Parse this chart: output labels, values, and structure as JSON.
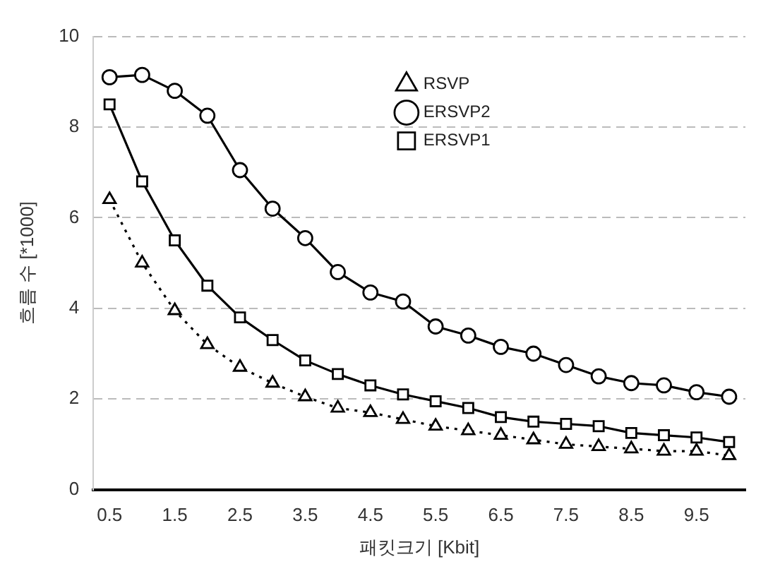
{
  "chart_data": {
    "type": "line",
    "xlabel": "패킷크기 [Kbit]",
    "ylabel": "흐름 수 [*1000]",
    "categories": [
      "0.5",
      null,
      "1.5",
      null,
      "2.5",
      null,
      "3.5",
      null,
      "4.5",
      null,
      "5.5",
      null,
      "6.5",
      null,
      "7.5",
      null,
      "8.5",
      null,
      "9.5",
      null
    ],
    "ylim": [
      0,
      10
    ],
    "yticks": [
      0,
      2,
      4,
      6,
      8,
      10
    ],
    "grid": "y",
    "legend": "top right",
    "series": [
      {
        "name": "RSVP",
        "color": "#000000",
        "marker": "triangle",
        "line_style": "dotted",
        "values": [
          6.4,
          5.0,
          3.95,
          3.2,
          2.7,
          2.35,
          2.05,
          1.8,
          1.7,
          1.55,
          1.4,
          1.3,
          1.2,
          1.1,
          1.0,
          0.95,
          0.9,
          0.85,
          0.85,
          0.75
        ]
      },
      {
        "name": "ERSVP2",
        "color": "#000000",
        "marker": "circle",
        "line_style": "solid",
        "values": [
          9.1,
          9.15,
          8.8,
          8.25,
          7.05,
          6.2,
          5.55,
          4.8,
          4.35,
          4.15,
          3.6,
          3.4,
          3.15,
          3.0,
          2.75,
          2.5,
          2.35,
          2.3,
          2.15,
          2.05
        ]
      },
      {
        "name": "ERSVP1",
        "color": "#000000",
        "marker": "square",
        "line_style": "solid",
        "values": [
          8.5,
          6.8,
          5.5,
          4.5,
          3.8,
          3.3,
          2.85,
          2.55,
          2.3,
          2.1,
          1.95,
          1.8,
          1.6,
          1.5,
          1.45,
          1.4,
          1.25,
          1.2,
          1.15,
          1.05
        ]
      }
    ]
  }
}
